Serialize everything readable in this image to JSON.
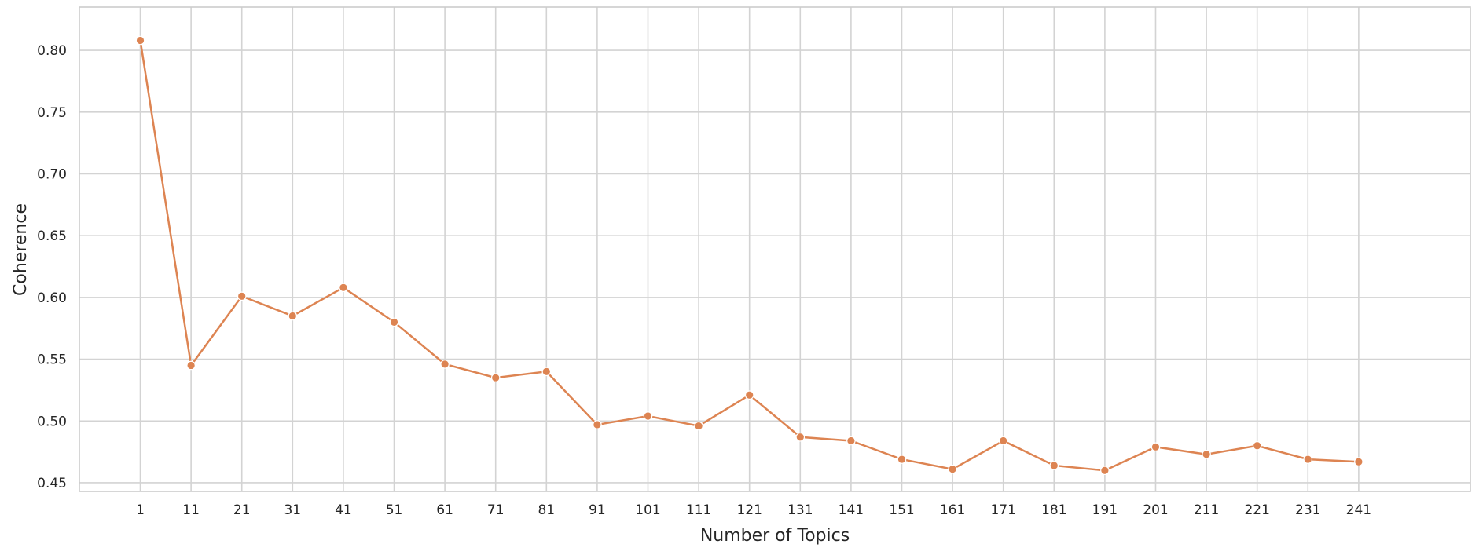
{
  "chart_data": {
    "type": "line",
    "xlabel": "Number of Topics",
    "ylabel": "Coherence",
    "x": [
      1,
      11,
      21,
      31,
      41,
      51,
      61,
      71,
      81,
      91,
      101,
      111,
      121,
      131,
      141,
      151,
      161,
      171,
      181,
      191,
      201,
      211,
      221,
      231,
      241
    ],
    "series": [
      {
        "color": "#dd8452",
        "values": [
          0.808,
          0.545,
          0.601,
          0.585,
          0.608,
          0.58,
          0.546,
          0.535,
          0.54,
          0.497,
          0.504,
          0.496,
          0.521,
          0.487,
          0.484,
          0.469,
          0.461,
          0.484,
          0.464,
          0.46,
          0.479,
          0.473,
          0.48,
          0.469,
          0.467
        ]
      }
    ],
    "xticks": [
      "1",
      "11",
      "21",
      "31",
      "41",
      "51",
      "61",
      "71",
      "81",
      "91",
      "101",
      "111",
      "121",
      "131",
      "141",
      "151",
      "161",
      "171",
      "181",
      "191",
      "201",
      "211",
      "221",
      "231",
      "241"
    ],
    "yticks": [
      "0.45",
      "0.50",
      "0.55",
      "0.60",
      "0.65",
      "0.70",
      "0.75",
      "0.80"
    ],
    "xlim": [
      -11,
      263
    ],
    "ylim": [
      0.443,
      0.835
    ],
    "grid": true,
    "legend": "none"
  }
}
